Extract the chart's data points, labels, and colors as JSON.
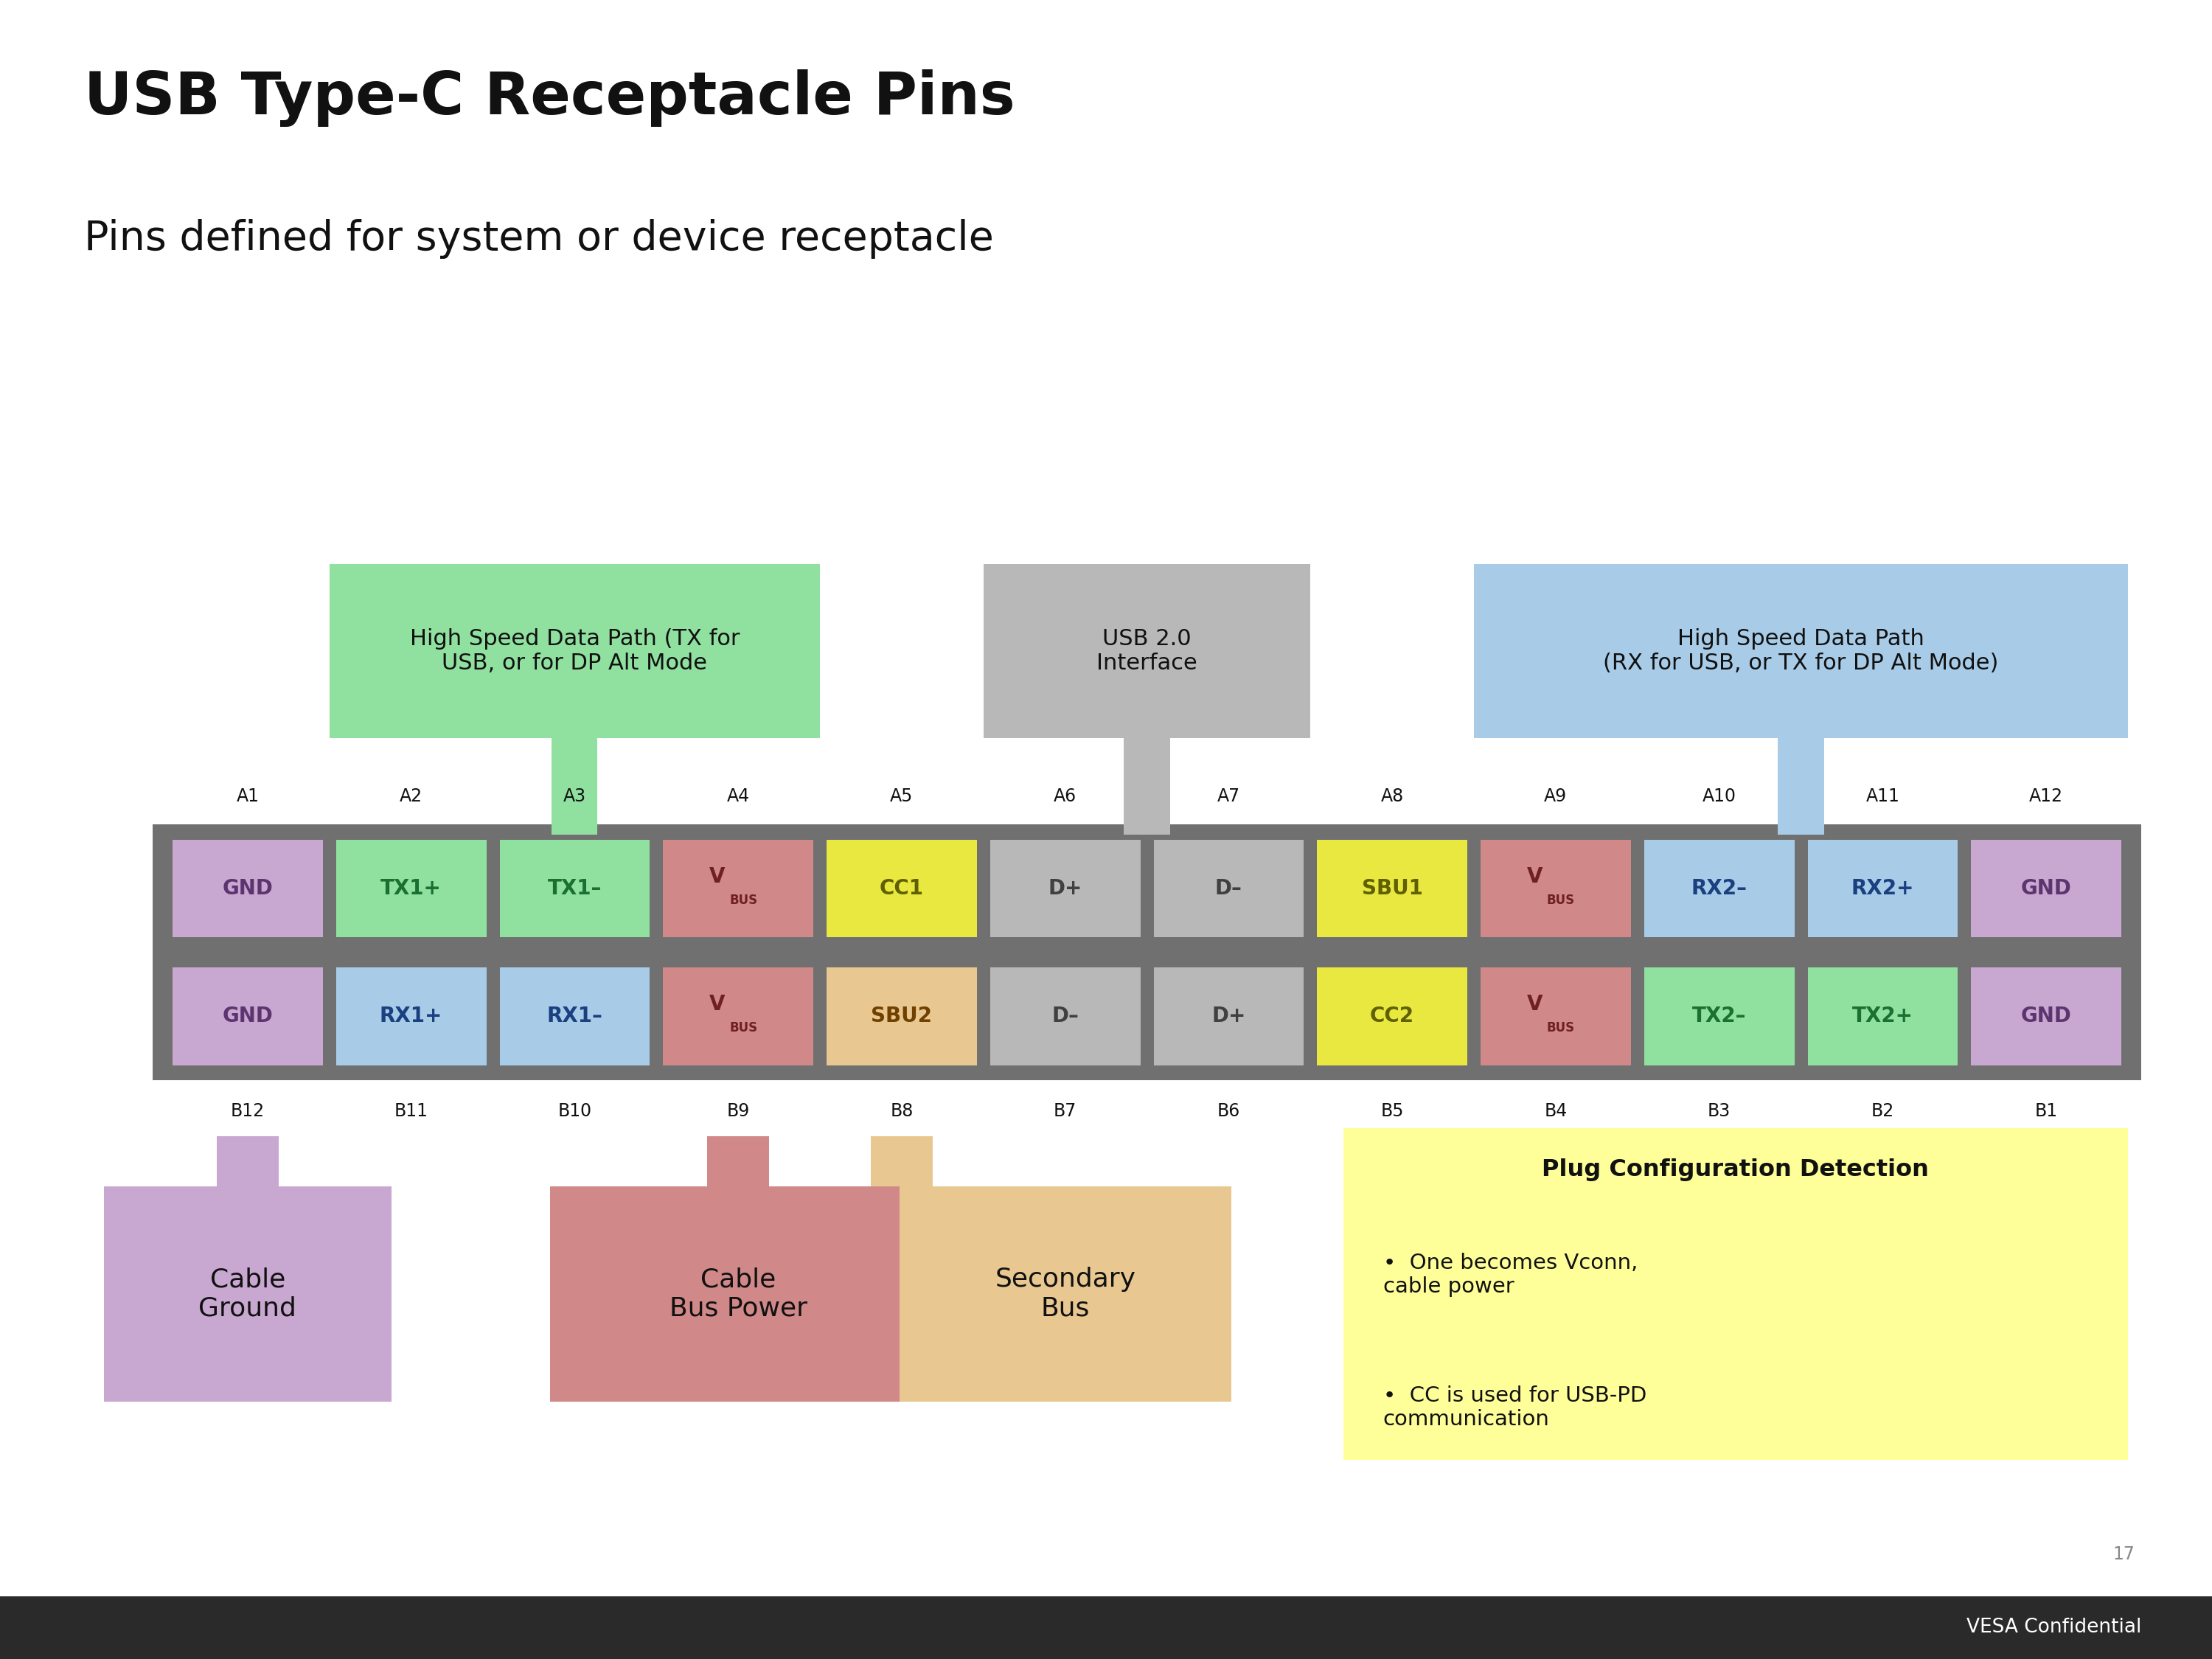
{
  "title": "USB Type-C Receptacle Pins",
  "subtitle": "Pins defined for system or device receptacle",
  "background_color": "#ffffff",
  "footer_text": "VESA Confidential",
  "page_num": "17",
  "row_a_labels": [
    "A1",
    "A2",
    "A3",
    "A4",
    "A5",
    "A6",
    "A7",
    "A8",
    "A9",
    "A10",
    "A11",
    "A12"
  ],
  "row_b_labels": [
    "B12",
    "B11",
    "B10",
    "B9",
    "B8",
    "B7",
    "B6",
    "B5",
    "B4",
    "B3",
    "B2",
    "B1"
  ],
  "row_a_pins": [
    "GND",
    "TX1+",
    "TX1–",
    "VBUS",
    "CC1",
    "D+",
    "D–",
    "SBU1",
    "VBUS",
    "RX2–",
    "RX2+",
    "GND"
  ],
  "row_b_pins": [
    "GND",
    "RX1+",
    "RX1–",
    "VBUS",
    "SBU2",
    "D–",
    "D+",
    "CC2",
    "VBUS",
    "TX2–",
    "TX2+",
    "GND"
  ],
  "row_a_colors": [
    "#c8a8d0",
    "#90e0a0",
    "#90e0a0",
    "#d08888",
    "#e8e840",
    "#b8b8b8",
    "#b8b8b8",
    "#e8e840",
    "#d08888",
    "#a8cce8",
    "#a8cce8",
    "#c8a8d0"
  ],
  "row_b_colors": [
    "#c8a8d0",
    "#a8cce8",
    "#a8cce8",
    "#d08888",
    "#e8c890",
    "#b8b8b8",
    "#b8b8b8",
    "#e8e840",
    "#d08888",
    "#90e0a0",
    "#90e0a0",
    "#c8a8d0"
  ],
  "row_a_text_colors": [
    "#5a3570",
    "#1a7030",
    "#1a7030",
    "#702020",
    "#606000",
    "#404040",
    "#404040",
    "#606000",
    "#702020",
    "#1a4080",
    "#1a4080",
    "#5a3570"
  ],
  "row_b_text_colors": [
    "#5a3570",
    "#1a4080",
    "#1a4080",
    "#702020",
    "#704000",
    "#404040",
    "#404040",
    "#606000",
    "#702020",
    "#1a7030",
    "#1a7030",
    "#5a3570"
  ],
  "header_left_text": "High Speed Data Path (TX for\nUSB, or for DP Alt Mode",
  "header_left_color": "#90e0a0",
  "header_mid_text": "USB 2.0\nInterface",
  "header_mid_color": "#b8b8b8",
  "header_right_text": "High Speed Data Path\n(RX for USB, or TX for DP Alt Mode)",
  "header_right_color": "#a8cce8",
  "box_cable_ground_text": "Cable\nGround",
  "box_cable_ground_color": "#c8a8d0",
  "box_cable_ground_stem_color": "#c8a8d0",
  "box_cable_bus_text": "Cable\nBus Power",
  "box_cable_bus_color": "#d08888",
  "box_cable_bus_stem_color": "#d08888",
  "box_secondary_bus_text": "Secondary\nBus",
  "box_secondary_bus_color": "#e8c890",
  "box_secondary_bus_stem_color": "#e8c890",
  "box_plug_config_title": "Plug Configuration Detection",
  "box_plug_config_bullet1": "One becomes Vconn,\ncable power",
  "box_plug_config_bullet2": "CC is used for USB-PD\ncommunication",
  "box_plug_config_color": "#ffff99",
  "box_plug_config_stem_color": "#e8e840"
}
